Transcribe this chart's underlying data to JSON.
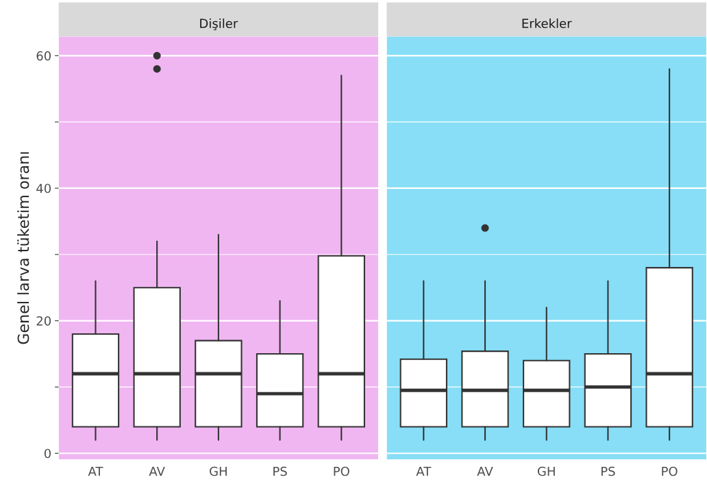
{
  "chart_data": [
    {
      "type": "box",
      "title": "Dişiler",
      "ylabel": "Genel larva tüketim oranı",
      "categories": [
        "AT",
        "AV",
        "GH",
        "PS",
        "PO"
      ],
      "ylim": [
        -0.9,
        62.9
      ],
      "yticks": [
        0,
        {
          "value": 10,
          "label": null
        },
        20,
        {
          "value": 30,
          "label": null
        },
        40,
        {
          "value": 50,
          "label": null
        },
        60
      ],
      "grid": "y",
      "bands": [
        {
          "axis": "y",
          "from": -0.9,
          "to": 62.9,
          "color": "#f0b6f2"
        }
      ],
      "series": [
        {
          "color": "#ffffff",
          "boxes": [
            {
              "low": 2,
              "q1": 4,
              "median": 12,
              "q3": 18,
              "high": 26
            },
            {
              "low": 2,
              "q1": 4,
              "median": 12,
              "q3": 25,
              "high": 32,
              "outliers": [
                58,
                60
              ]
            },
            {
              "low": 2,
              "q1": 4,
              "median": 12,
              "q3": 17,
              "high": 33
            },
            {
              "low": 2,
              "q1": 4,
              "median": 9,
              "q3": 15,
              "high": 23
            },
            {
              "low": 2,
              "q1": 4,
              "median": 12,
              "q3": 29.8,
              "high": 57
            }
          ]
        }
      ]
    },
    {
      "type": "box",
      "title": "Erkekler",
      "categories": [
        "AT",
        "AV",
        "GH",
        "PS",
        "PO"
      ],
      "ylim": [
        -0.9,
        62.9
      ],
      "yticks": [
        0,
        {
          "value": 10,
          "label": null
        },
        20,
        {
          "value": 30,
          "label": null
        },
        40,
        {
          "value": 50,
          "label": null
        },
        60
      ],
      "grid": "y",
      "tick_labels": "x",
      "bands": [
        {
          "axis": "y",
          "from": -0.9,
          "to": 62.9,
          "color": "#87def6"
        }
      ],
      "series": [
        {
          "color": "#ffffff",
          "boxes": [
            {
              "low": 2,
              "q1": 4,
              "median": 9.5,
              "q3": 14.2,
              "high": 26
            },
            {
              "low": 2,
              "q1": 4,
              "median": 9.5,
              "q3": 15.4,
              "high": 26,
              "outliers": [
                34
              ]
            },
            {
              "low": 2,
              "q1": 4,
              "median": 9.5,
              "q3": 14,
              "high": 22
            },
            {
              "low": 2,
              "q1": 4,
              "median": 10,
              "q3": 15,
              "high": 26
            },
            {
              "low": 2,
              "q1": 4,
              "median": 12,
              "q3": 28,
              "high": 58
            }
          ]
        }
      ]
    }
  ]
}
